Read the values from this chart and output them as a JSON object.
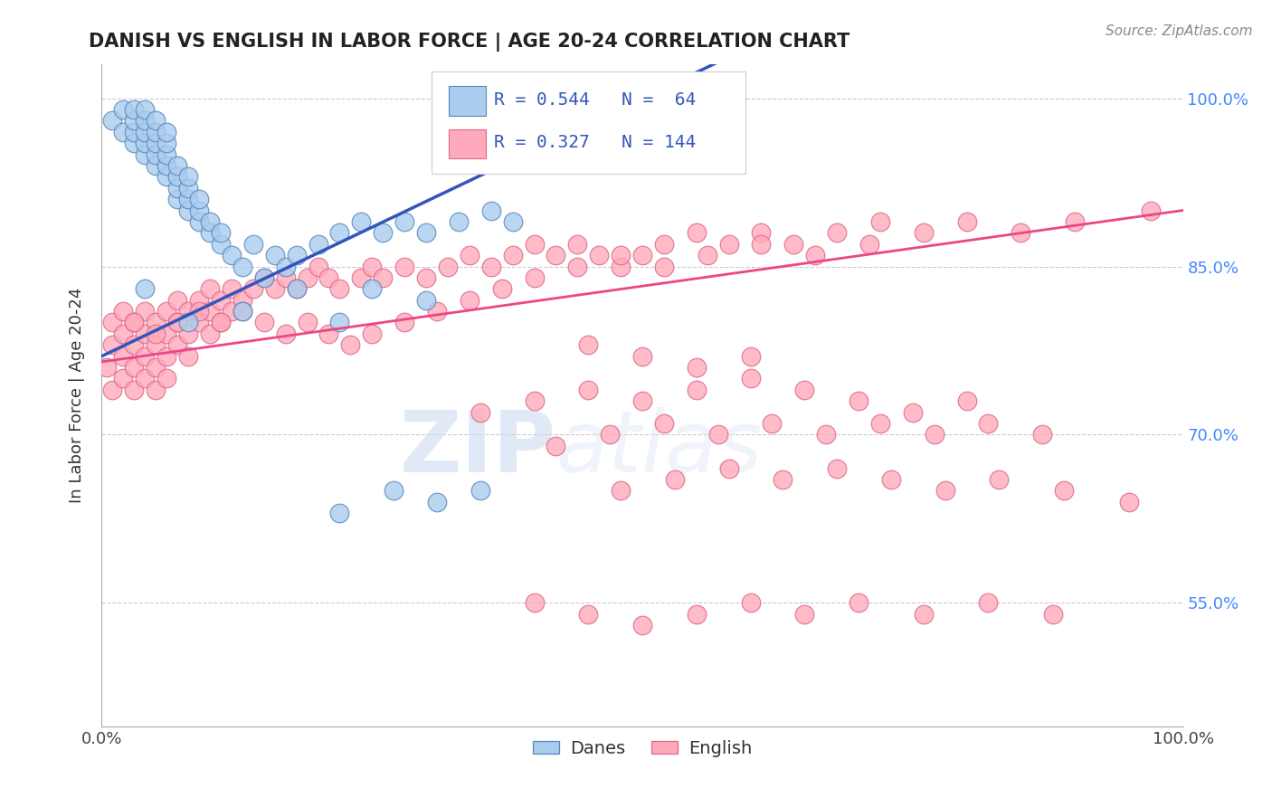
{
  "title": "DANISH VS ENGLISH IN LABOR FORCE | AGE 20-24 CORRELATION CHART",
  "source_text": "Source: ZipAtlas.com",
  "ylabel": "In Labor Force | Age 20-24",
  "xlim": [
    0.0,
    1.0
  ],
  "ylim": [
    0.44,
    1.03
  ],
  "yticks": [
    0.55,
    0.7,
    0.85,
    1.0
  ],
  "ytick_labels": [
    "55.0%",
    "70.0%",
    "85.0%",
    "100.0%"
  ],
  "grid_color": "#cccccc",
  "background_color": "#ffffff",
  "danes_color": "#aaccee",
  "english_color": "#ffaabb",
  "danes_edge_color": "#5588bb",
  "english_edge_color": "#dd6688",
  "trend_blue": "#3355bb",
  "trend_pink": "#ee4488",
  "danes_R": 0.544,
  "danes_N": 64,
  "english_R": 0.327,
  "english_N": 144,
  "legend_label_danes": "Danes",
  "legend_label_english": "English",
  "watermark_zip": "ZIP",
  "watermark_atlas": "atlas",
  "danes_x": [
    0.01,
    0.02,
    0.02,
    0.03,
    0.03,
    0.03,
    0.03,
    0.04,
    0.04,
    0.04,
    0.04,
    0.04,
    0.05,
    0.05,
    0.05,
    0.05,
    0.05,
    0.06,
    0.06,
    0.06,
    0.06,
    0.06,
    0.07,
    0.07,
    0.07,
    0.07,
    0.08,
    0.08,
    0.08,
    0.08,
    0.09,
    0.09,
    0.09,
    0.1,
    0.1,
    0.11,
    0.11,
    0.12,
    0.13,
    0.14,
    0.15,
    0.16,
    0.17,
    0.18,
    0.2,
    0.22,
    0.24,
    0.26,
    0.28,
    0.3,
    0.33,
    0.36,
    0.38,
    0.22,
    0.27,
    0.31,
    0.35,
    0.22,
    0.3,
    0.25,
    0.18,
    0.13,
    0.08,
    0.04
  ],
  "danes_y": [
    0.98,
    0.97,
    0.99,
    0.96,
    0.97,
    0.98,
    0.99,
    0.95,
    0.96,
    0.97,
    0.98,
    0.99,
    0.94,
    0.95,
    0.96,
    0.97,
    0.98,
    0.93,
    0.94,
    0.95,
    0.96,
    0.97,
    0.91,
    0.92,
    0.93,
    0.94,
    0.9,
    0.91,
    0.92,
    0.93,
    0.89,
    0.9,
    0.91,
    0.88,
    0.89,
    0.87,
    0.88,
    0.86,
    0.85,
    0.87,
    0.84,
    0.86,
    0.85,
    0.86,
    0.87,
    0.88,
    0.89,
    0.88,
    0.89,
    0.88,
    0.89,
    0.9,
    0.89,
    0.63,
    0.65,
    0.64,
    0.65,
    0.8,
    0.82,
    0.83,
    0.83,
    0.81,
    0.8,
    0.83
  ],
  "english_x": [
    0.005,
    0.01,
    0.01,
    0.01,
    0.02,
    0.02,
    0.02,
    0.02,
    0.03,
    0.03,
    0.03,
    0.03,
    0.04,
    0.04,
    0.04,
    0.04,
    0.05,
    0.05,
    0.05,
    0.05,
    0.06,
    0.06,
    0.06,
    0.06,
    0.07,
    0.07,
    0.07,
    0.08,
    0.08,
    0.08,
    0.09,
    0.09,
    0.1,
    0.1,
    0.1,
    0.11,
    0.11,
    0.12,
    0.12,
    0.13,
    0.14,
    0.15,
    0.16,
    0.17,
    0.18,
    0.19,
    0.2,
    0.21,
    0.22,
    0.24,
    0.25,
    0.26,
    0.28,
    0.3,
    0.32,
    0.34,
    0.36,
    0.38,
    0.4,
    0.42,
    0.44,
    0.46,
    0.48,
    0.5,
    0.52,
    0.55,
    0.58,
    0.61,
    0.64,
    0.68,
    0.72,
    0.76,
    0.8,
    0.85,
    0.9,
    0.97,
    0.03,
    0.05,
    0.07,
    0.09,
    0.11,
    0.13,
    0.15,
    0.17,
    0.19,
    0.21,
    0.23,
    0.25,
    0.28,
    0.31,
    0.34,
    0.37,
    0.4,
    0.44,
    0.48,
    0.52,
    0.56,
    0.61,
    0.66,
    0.71,
    0.35,
    0.4,
    0.45,
    0.5,
    0.55,
    0.6,
    0.65,
    0.7,
    0.75,
    0.8,
    0.42,
    0.47,
    0.52,
    0.57,
    0.62,
    0.67,
    0.72,
    0.77,
    0.82,
    0.87,
    0.48,
    0.53,
    0.58,
    0.63,
    0.68,
    0.73,
    0.78,
    0.83,
    0.89,
    0.95,
    0.4,
    0.45,
    0.5,
    0.55,
    0.6,
    0.65,
    0.7,
    0.76,
    0.82,
    0.88,
    0.45,
    0.5,
    0.55,
    0.6
  ],
  "english_y": [
    0.76,
    0.74,
    0.78,
    0.8,
    0.75,
    0.77,
    0.79,
    0.81,
    0.74,
    0.76,
    0.78,
    0.8,
    0.75,
    0.77,
    0.79,
    0.81,
    0.76,
    0.78,
    0.8,
    0.74,
    0.77,
    0.79,
    0.81,
    0.75,
    0.78,
    0.8,
    0.82,
    0.79,
    0.81,
    0.77,
    0.8,
    0.82,
    0.81,
    0.83,
    0.79,
    0.82,
    0.8,
    0.83,
    0.81,
    0.82,
    0.83,
    0.84,
    0.83,
    0.84,
    0.83,
    0.84,
    0.85,
    0.84,
    0.83,
    0.84,
    0.85,
    0.84,
    0.85,
    0.84,
    0.85,
    0.86,
    0.85,
    0.86,
    0.87,
    0.86,
    0.87,
    0.86,
    0.85,
    0.86,
    0.87,
    0.88,
    0.87,
    0.88,
    0.87,
    0.88,
    0.89,
    0.88,
    0.89,
    0.88,
    0.89,
    0.9,
    0.8,
    0.79,
    0.8,
    0.81,
    0.8,
    0.81,
    0.8,
    0.79,
    0.8,
    0.79,
    0.78,
    0.79,
    0.8,
    0.81,
    0.82,
    0.83,
    0.84,
    0.85,
    0.86,
    0.85,
    0.86,
    0.87,
    0.86,
    0.87,
    0.72,
    0.73,
    0.74,
    0.73,
    0.74,
    0.75,
    0.74,
    0.73,
    0.72,
    0.73,
    0.69,
    0.7,
    0.71,
    0.7,
    0.71,
    0.7,
    0.71,
    0.7,
    0.71,
    0.7,
    0.65,
    0.66,
    0.67,
    0.66,
    0.67,
    0.66,
    0.65,
    0.66,
    0.65,
    0.64,
    0.55,
    0.54,
    0.53,
    0.54,
    0.55,
    0.54,
    0.55,
    0.54,
    0.55,
    0.54,
    0.78,
    0.77,
    0.76,
    0.77
  ]
}
